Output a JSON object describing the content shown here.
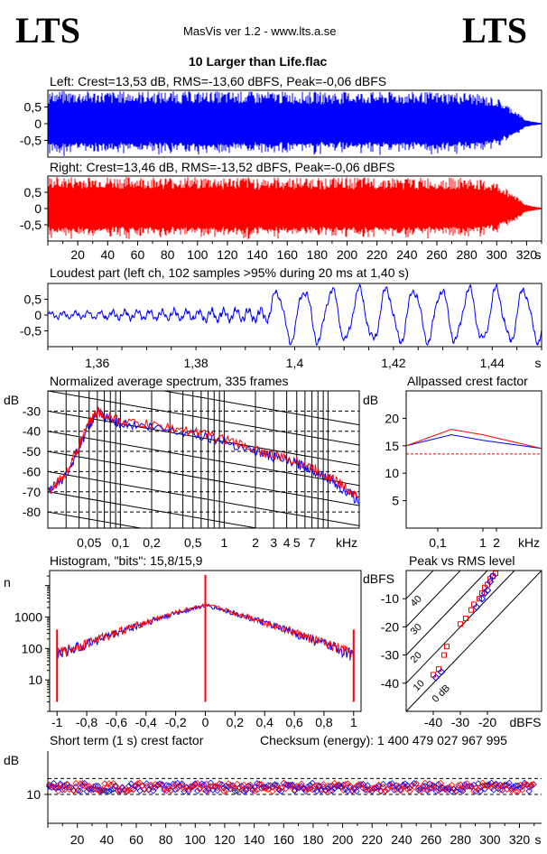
{
  "header": {
    "logo_left": "LTS",
    "logo_right": "LTS",
    "app_title": "MasVis ver 1.2 - www.lts.a.se",
    "file_title": "10 Larger than Life.flac"
  },
  "colors": {
    "left": "#0000ff",
    "right": "#ff0000",
    "grid": "#000000"
  },
  "chart_data": [
    {
      "id": "left_waveform",
      "type": "area",
      "title": "Left: Crest=13,53 dB, RMS=-13,60 dBFS, Peak=-0,06 dBFS",
      "yticks": [
        "0,5",
        "0",
        "-0,5"
      ],
      "ylim": [
        -1,
        1
      ],
      "xlim": [
        0,
        330
      ],
      "envelope": {
        "x": [
          0,
          5,
          280,
          300,
          312,
          320,
          330
        ],
        "amp": [
          0.95,
          0.98,
          0.95,
          0.78,
          0.42,
          0.1,
          0.02
        ]
      },
      "color": "blue"
    },
    {
      "id": "right_waveform",
      "type": "area",
      "title": "Right: Crest=13,46 dB, RMS=-13,52 dBFS, Peak=-0,06 dBFS",
      "yticks": [
        "0,5",
        "0",
        "-0,5"
      ],
      "ylim": [
        -1,
        1
      ],
      "xlim": [
        0,
        330
      ],
      "xticks": [
        "20",
        "40",
        "60",
        "80",
        "100",
        "120",
        "140",
        "160",
        "180",
        "200",
        "220",
        "240",
        "260",
        "280",
        "300",
        "320",
        "s"
      ],
      "envelope": {
        "x": [
          0,
          5,
          280,
          300,
          312,
          320,
          330
        ],
        "amp": [
          0.95,
          0.98,
          0.95,
          0.8,
          0.45,
          0.12,
          0.02
        ]
      },
      "color": "red"
    },
    {
      "id": "loudest_part",
      "type": "line",
      "title": "Loudest part (left  ch, 102 samples >95% during 20 ms at 1,40 s)",
      "yticks": [
        "0,5",
        "0",
        "-0,5"
      ],
      "ylim": [
        -1,
        1
      ],
      "xlim": [
        1.35,
        1.45
      ],
      "xticks": [
        "1,36",
        "1,38",
        "1,4",
        "1,42",
        "1,44",
        "s"
      ]
    },
    {
      "id": "avg_spectrum",
      "type": "line",
      "title": "Normalized average spectrum, 335 frames",
      "ylabel": "dB",
      "xlabel": "kHz",
      "yticks": [
        "-30",
        "-40",
        "-50",
        "-60",
        "-70",
        "-80"
      ],
      "ylim": [
        -88,
        -20
      ],
      "xticks": [
        "0,05",
        "0,1",
        "0,2",
        "0,5",
        "1",
        "2",
        "3",
        "4",
        "5",
        "7",
        "kHz"
      ],
      "xlim_khz": [
        0.02,
        20
      ],
      "series": [
        {
          "color": "blue",
          "x": [
            0.02,
            0.03,
            0.04,
            0.05,
            0.06,
            0.07,
            0.1,
            0.2,
            0.5,
            1,
            2,
            3,
            5,
            7,
            10,
            15,
            20
          ],
          "y": [
            -70,
            -62,
            -48,
            -37,
            -31,
            -33,
            -36,
            -38,
            -41,
            -45,
            -50,
            -53,
            -56,
            -59,
            -63,
            -70,
            -75
          ]
        },
        {
          "color": "red",
          "x": [
            0.02,
            0.03,
            0.04,
            0.05,
            0.06,
            0.07,
            0.1,
            0.2,
            0.5,
            1,
            2,
            3,
            5,
            7,
            10,
            15,
            20
          ],
          "y": [
            -70,
            -61,
            -47,
            -36,
            -30,
            -32,
            -35,
            -37,
            -40,
            -44,
            -49,
            -52,
            -55,
            -58,
            -62,
            -68,
            -73
          ]
        }
      ]
    },
    {
      "id": "allpassed_crest",
      "type": "line",
      "title": "Allpassed crest factor",
      "ylabel": "dB",
      "xlabel": "kHz",
      "yticks": [
        "20",
        "15",
        "10",
        "5"
      ],
      "ylim": [
        0,
        25
      ],
      "xticks": [
        "0,1",
        "1",
        "2",
        "kHz"
      ],
      "series": [
        {
          "color": "blue",
          "x": [
            0.02,
            0.2,
            1,
            20
          ],
          "y": [
            15,
            17,
            16,
            14.5
          ]
        },
        {
          "color": "red",
          "x": [
            0.02,
            0.2,
            1,
            20
          ],
          "y": [
            15,
            18,
            17,
            14.5
          ]
        }
      ],
      "reference_db": 13.5
    },
    {
      "id": "histogram",
      "type": "line",
      "title": "Histogram, \"bits\": 15,8/15,9",
      "ylabel": "n",
      "yticks": [
        "1000",
        "100",
        "10"
      ],
      "ylim_log": [
        1,
        30000
      ],
      "xticks": [
        "-1",
        "-0,8",
        "-0,6",
        "-0,4",
        "-0,2",
        "0",
        "0,2",
        "0,4",
        "0,6",
        "0,8",
        "1"
      ],
      "xlim": [
        -1.05,
        1.05
      ]
    },
    {
      "id": "peak_vs_rms",
      "type": "scatter",
      "title": "Peak vs RMS level",
      "ylabel": "dBFS",
      "xlabel": "dBFS",
      "yticks": [
        "-10",
        "-20",
        "-30",
        "-40"
      ],
      "xticks": [
        "-40",
        "-30",
        "-20"
      ],
      "ylim": [
        -50,
        0
      ],
      "xlim": [
        -50,
        0
      ],
      "diagonal_labels": [
        "40",
        "30",
        "20",
        "10",
        "0 dB"
      ],
      "series": [
        {
          "color": "red",
          "x": [
            -40,
            -38,
            -36,
            -35,
            -30,
            -28,
            -26,
            -25,
            -23,
            -22,
            -21,
            -20,
            -19,
            -18,
            -17
          ],
          "y": [
            -37,
            -35,
            -30,
            -27,
            -19,
            -17,
            -14,
            -12,
            -10,
            -8,
            -6,
            -5,
            -3,
            -2,
            -1
          ]
        },
        {
          "color": "blue",
          "x": [
            -39,
            -37,
            -24,
            -22,
            -21,
            -20,
            -19,
            -18
          ],
          "y": [
            -38,
            -36,
            -13,
            -10,
            -8,
            -7,
            -4,
            -2
          ]
        }
      ]
    },
    {
      "id": "short_term_crest",
      "type": "scatter",
      "title": "Short term (1 s) crest factor",
      "ylabel": "dB",
      "checksum": "Checksum (energy):  1 400 479 027 967 995",
      "ytick": "10",
      "xlim": [
        0,
        335
      ],
      "xticks": [
        "20",
        "40",
        "60",
        "80",
        "100",
        "120",
        "140",
        "160",
        "180",
        "200",
        "220",
        "240",
        "260",
        "280",
        "300",
        "320",
        "s"
      ],
      "typical_db": 12.5,
      "spread_db": 1.5
    }
  ]
}
